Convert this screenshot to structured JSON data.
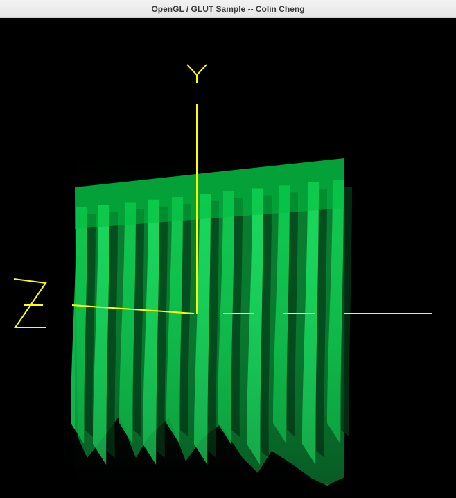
{
  "window": {
    "title": "OpenGL / GLUT Sample -- Colin Cheng"
  },
  "scene": {
    "background_color": "#000000",
    "axes_color": "#ffff00",
    "curtain_color": "#00c844",
    "axis_labels": {
      "x": "",
      "y": "Y",
      "z": "Z"
    }
  }
}
